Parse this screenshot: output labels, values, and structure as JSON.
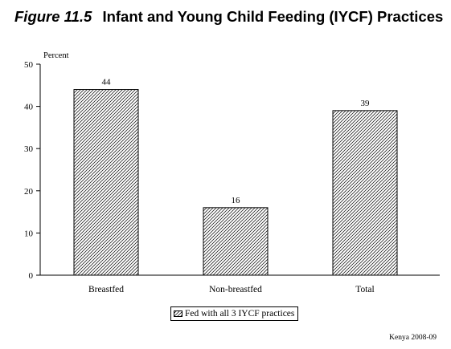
{
  "figure": {
    "number": "Figure 11.5",
    "title": "Infant and Young Child Feeding (IYCF) Practices"
  },
  "chart_data": {
    "type": "bar",
    "title": "Infant and Young Child Feeding (IYCF) Practices",
    "ylabel": "Percent",
    "xlabel": "",
    "ylim": [
      0,
      50
    ],
    "yticks": [
      0,
      10,
      20,
      30,
      40,
      50
    ],
    "categories": [
      "Breastfed",
      "Non-breastfed",
      "Total"
    ],
    "series": [
      {
        "name": "Fed with all 3 IYCF practices",
        "values": [
          44,
          16,
          39
        ],
        "pattern": "diagonal-hatch"
      }
    ],
    "grid": false,
    "legend_position": "bottom-center"
  },
  "legend": {
    "label": "Fed with all 3 IYCF practices"
  },
  "source": "Kenya 2008-09",
  "colors": {
    "ink": "#000000",
    "background": "#ffffff"
  }
}
